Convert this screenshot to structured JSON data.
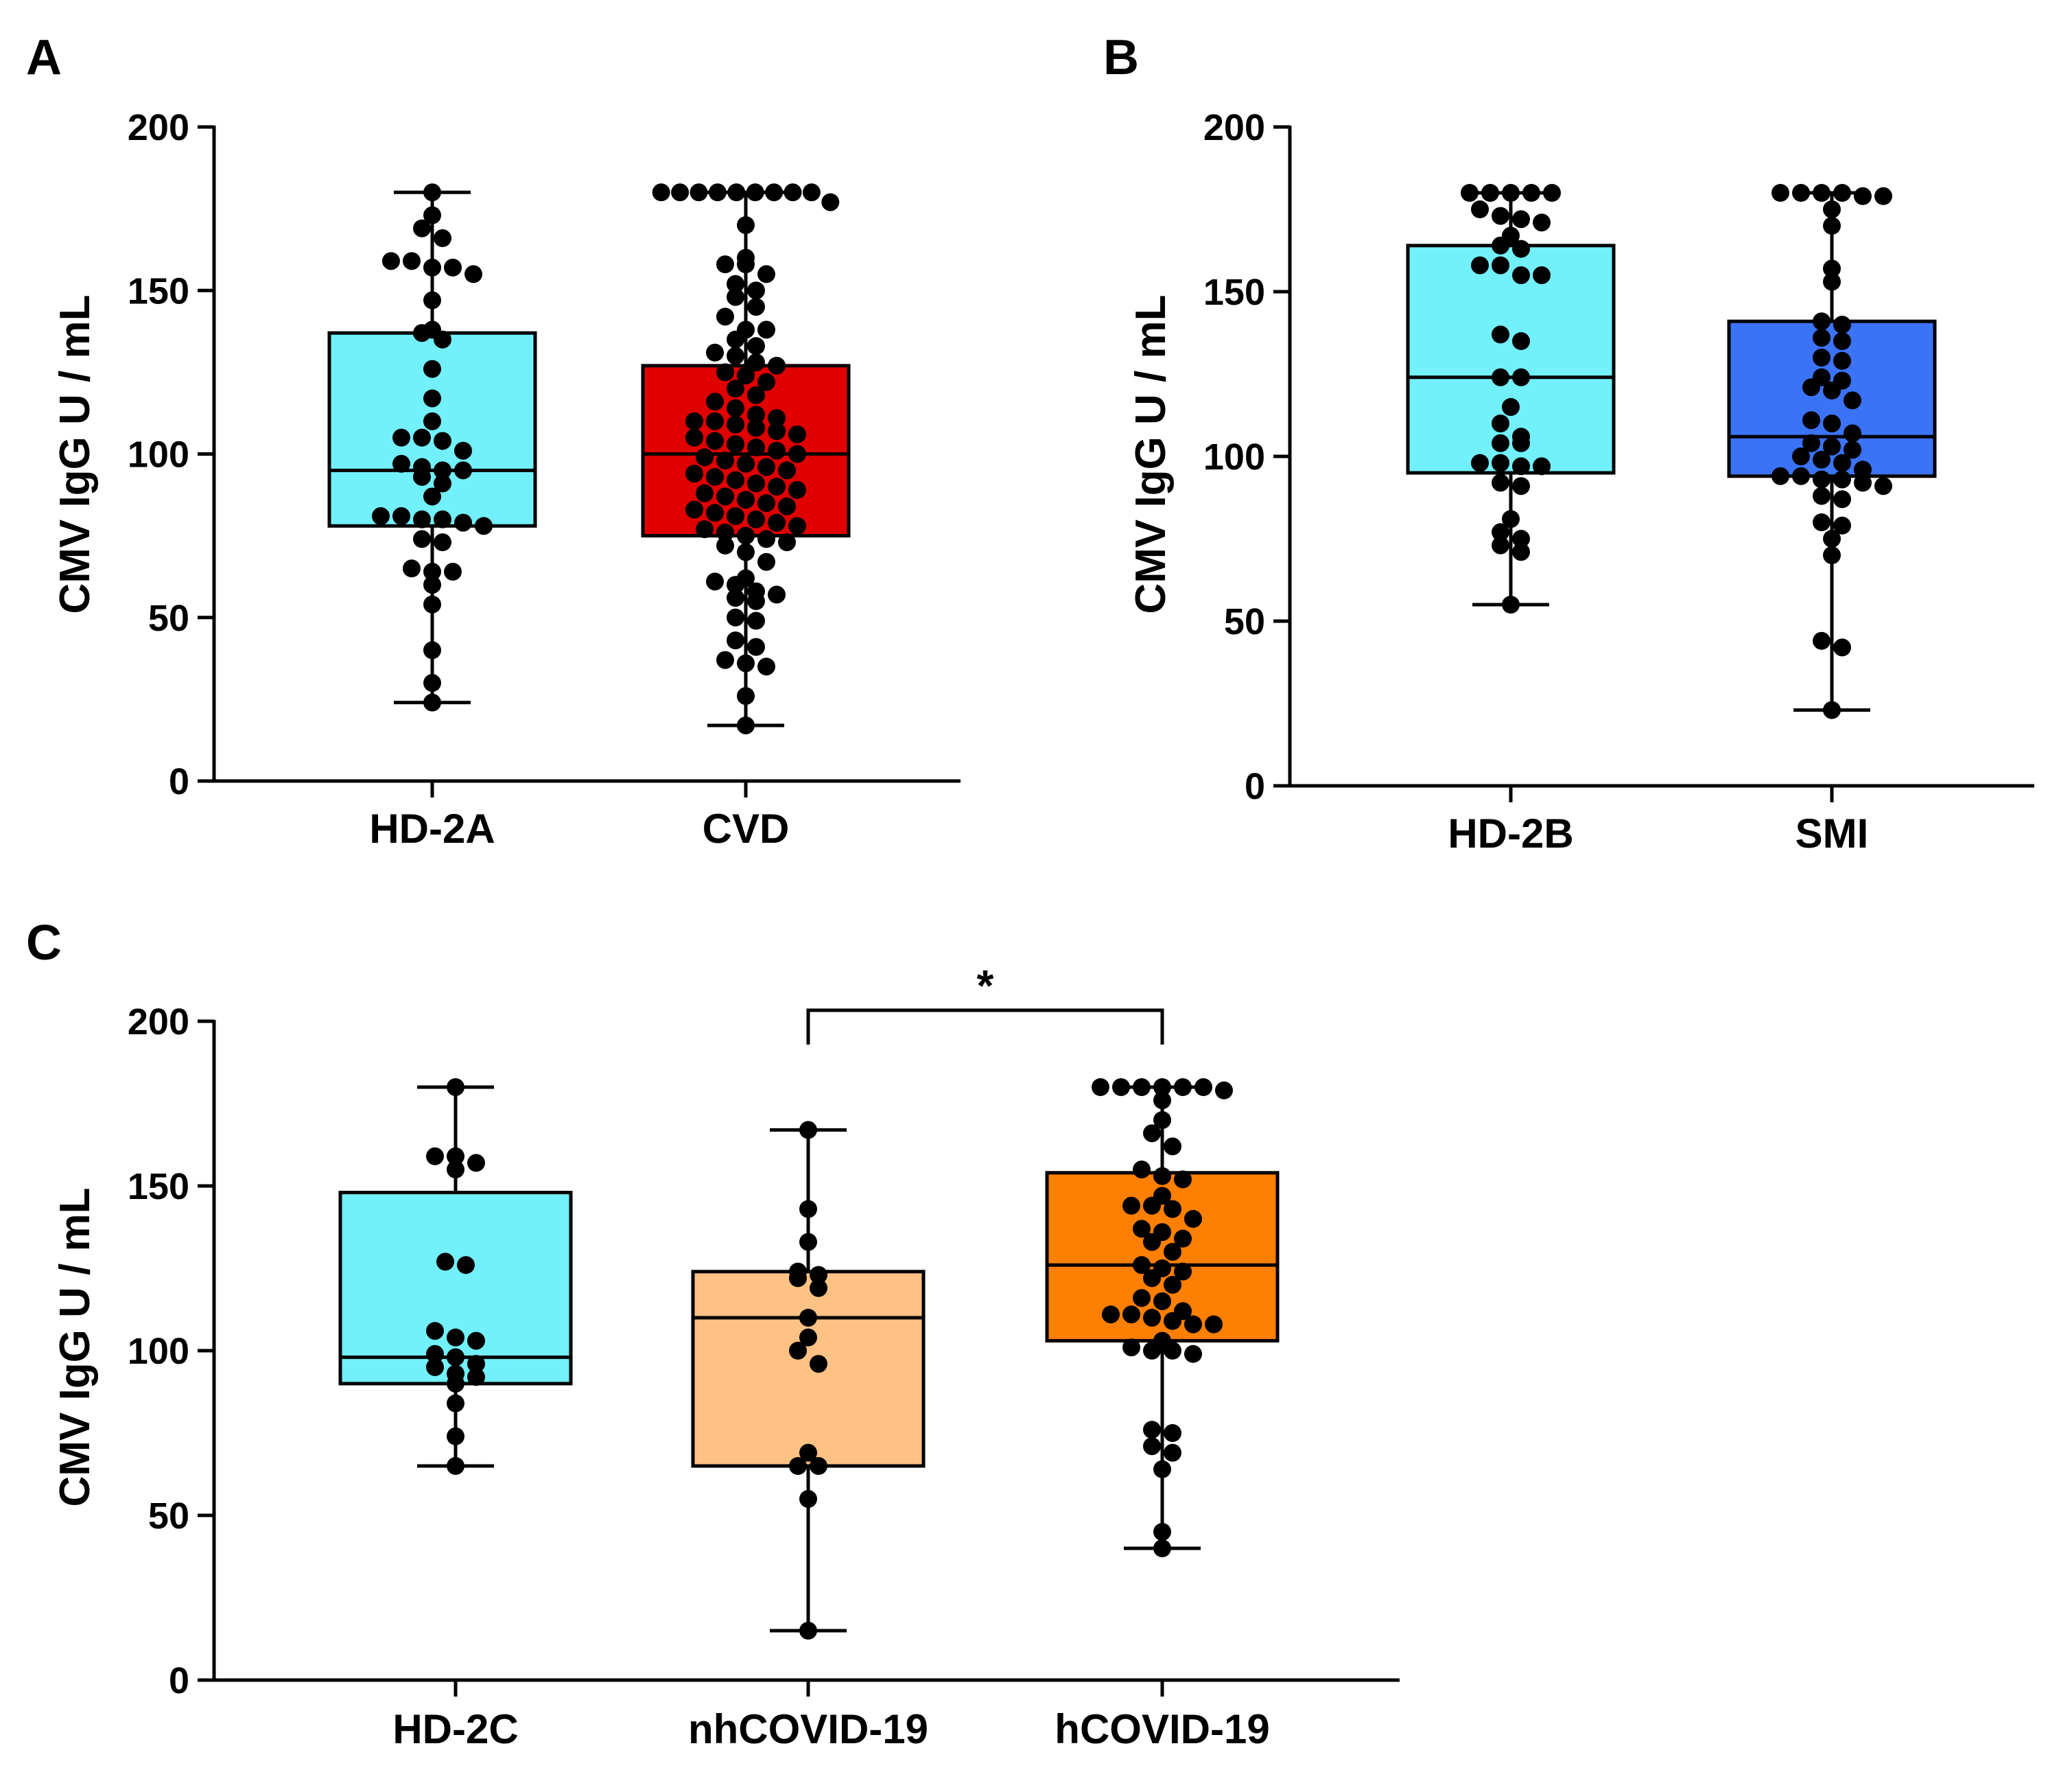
{
  "chart_data": [
    {
      "type": "box",
      "panel_label": "A",
      "ylabel": "CMV IgG U / mL",
      "ylim": [
        0,
        200
      ],
      "yticks": [
        0,
        50,
        100,
        150,
        200
      ],
      "categories": [
        "HD-2A",
        "CVD"
      ],
      "series": [
        {
          "name": "HD-2A",
          "color": "#72F0FB",
          "min": 24,
          "q1": 78,
          "median": 95,
          "q3": 137,
          "max": 180,
          "points": [
            180,
            173,
            169,
            166,
            159,
            159,
            157,
            157,
            155,
            147,
            138,
            137,
            135,
            126,
            117,
            110,
            105,
            105,
            104,
            101,
            97,
            96,
            95,
            95,
            93,
            91,
            87,
            81,
            81,
            80,
            80,
            79,
            78,
            74,
            73,
            65,
            64,
            64,
            60,
            54,
            40,
            30,
            24
          ]
        },
        {
          "name": "CVD",
          "color": "#E00000",
          "min": 17,
          "q1": 75,
          "median": 100,
          "q3": 127,
          "max": 180,
          "points": [
            180,
            180,
            180,
            180,
            180,
            180,
            180,
            180,
            180,
            177,
            170,
            160,
            158,
            158,
            155,
            152,
            150,
            148,
            145,
            142,
            138,
            138,
            135,
            133,
            131,
            130,
            128,
            127,
            125,
            124,
            122,
            120,
            118,
            116,
            114,
            112,
            111,
            110,
            110,
            109,
            108,
            107,
            106,
            105,
            104,
            103,
            102,
            101,
            100,
            99,
            98,
            97,
            96,
            95,
            94,
            93,
            92,
            91,
            90,
            89,
            88,
            87,
            86,
            85,
            84,
            83,
            82,
            81,
            80,
            79,
            78,
            77,
            76,
            75,
            74,
            73,
            72,
            70,
            67,
            62,
            61,
            60,
            58,
            57,
            56,
            55,
            50,
            49,
            43,
            41,
            37,
            36,
            35,
            26,
            17
          ]
        }
      ]
    },
    {
      "type": "box",
      "panel_label": "B",
      "ylabel": "CMV IgG U / mL",
      "ylim": [
        0,
        200
      ],
      "yticks": [
        0,
        50,
        100,
        150,
        200
      ],
      "categories": [
        "HD-2B",
        "SMI"
      ],
      "series": [
        {
          "name": "HD-2B",
          "color": "#72F0FB",
          "min": 55,
          "q1": 95,
          "median": 124,
          "q3": 164,
          "max": 180,
          "points": [
            180,
            180,
            180,
            180,
            180,
            175,
            173,
            172,
            171,
            167,
            164,
            163,
            158,
            158,
            155,
            155,
            137,
            135,
            124,
            124,
            115,
            110,
            106,
            104,
            104,
            98,
            98,
            97,
            97,
            92,
            91,
            81,
            77,
            75,
            73,
            71,
            55
          ]
        },
        {
          "name": "SMI",
          "color": "#3B73F6",
          "min": 23,
          "q1": 94,
          "median": 106,
          "q3": 141,
          "max": 180,
          "points": [
            180,
            180,
            180,
            180,
            179,
            179,
            175,
            170,
            157,
            153,
            141,
            140,
            136,
            135,
            130,
            129,
            124,
            123,
            121,
            120,
            117,
            111,
            110,
            107,
            104,
            103,
            102,
            100,
            99,
            98,
            96,
            94,
            94,
            93,
            93,
            92,
            91,
            88,
            87,
            80,
            79,
            75,
            70,
            44,
            42,
            23
          ]
        }
      ]
    },
    {
      "type": "box",
      "panel_label": "C",
      "ylabel": "CMV IgG U / mL",
      "ylim": [
        0,
        200
      ],
      "yticks": [
        0,
        50,
        100,
        150,
        200
      ],
      "categories": [
        "HD-2C",
        "nhCOVID-19",
        "hCOVID-19"
      ],
      "significance": {
        "from": "nhCOVID-19",
        "to": "hCOVID-19",
        "label": "*"
      },
      "series": [
        {
          "name": "HD-2C",
          "color": "#72F0FB",
          "min": 65,
          "q1": 90,
          "median": 98,
          "q3": 148,
          "max": 180,
          "points": [
            180,
            159,
            159,
            157,
            155,
            127,
            126,
            106,
            104,
            103,
            99,
            98,
            96,
            95,
            93,
            92,
            90,
            84,
            74,
            65
          ]
        },
        {
          "name": "nhCOVID-19",
          "color": "#FFC285",
          "min": 15,
          "q1": 65,
          "median": 110,
          "q3": 124,
          "max": 167,
          "points": [
            167,
            143,
            133,
            124,
            123,
            122,
            119,
            110,
            104,
            100,
            96,
            69,
            65,
            65,
            55,
            15
          ]
        },
        {
          "name": "hCOVID-19",
          "color": "#FF7F00",
          "min": 40,
          "q1": 103,
          "median": 126,
          "q3": 154,
          "max": 180,
          "points": [
            180,
            180,
            180,
            180,
            180,
            180,
            179,
            176,
            170,
            166,
            162,
            155,
            153,
            152,
            147,
            144,
            144,
            143,
            140,
            137,
            136,
            134,
            133,
            130,
            126,
            125,
            124,
            122,
            120,
            116,
            115,
            112,
            111,
            111,
            110,
            109,
            108,
            108,
            103,
            101,
            100,
            100,
            99,
            76,
            75,
            71,
            69,
            64,
            45,
            40
          ]
        }
      ]
    }
  ]
}
